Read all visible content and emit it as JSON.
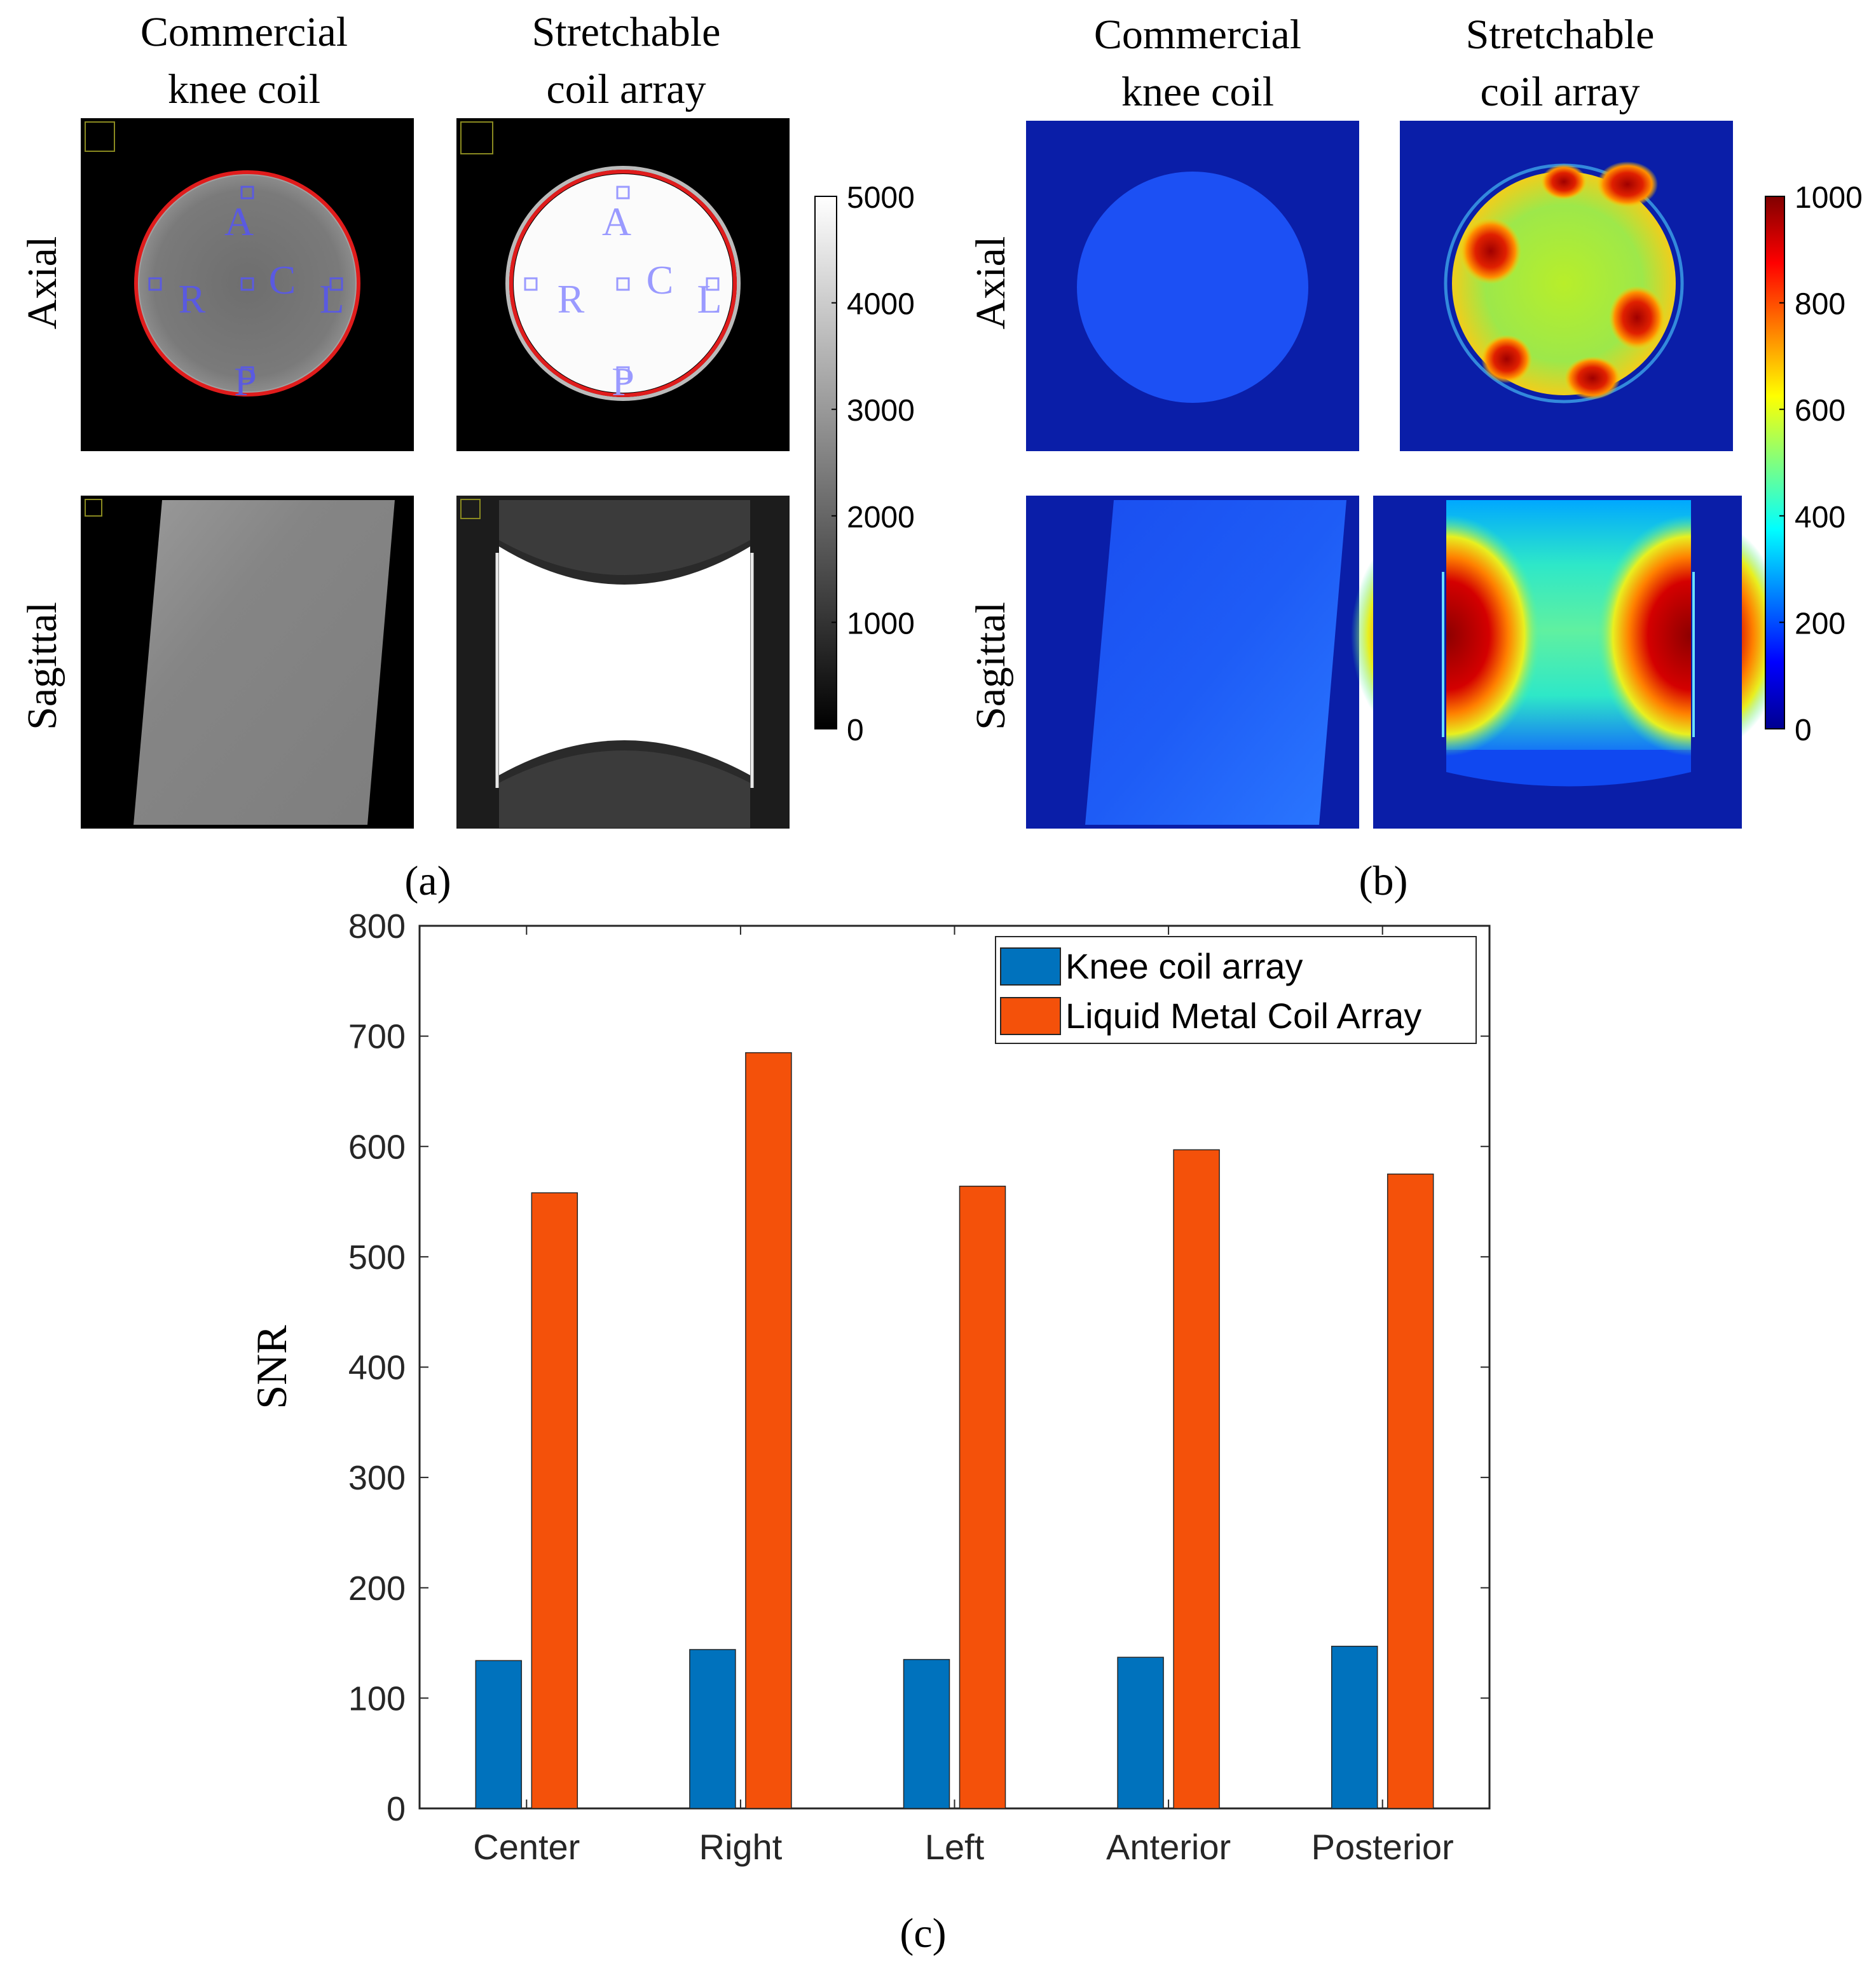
{
  "panel_a": {
    "caption": "(a)",
    "columns": [
      {
        "line1": "Commercial",
        "line2": "knee coil"
      },
      {
        "line1": "Stretchable",
        "line2": "coil array"
      }
    ],
    "rows": [
      "Axial",
      "Sagittal"
    ],
    "roi_labels": [
      "A",
      "R",
      "C",
      "L",
      "P"
    ],
    "colorbar": {
      "colormap": "gray",
      "ticks": [
        "5000",
        "4000",
        "3000",
        "2000",
        "1000",
        "0"
      ],
      "min": 0,
      "max": 5000
    },
    "colors": {
      "roi": "#5a5ae0",
      "roi_light": "#9a9aff",
      "ring": "#e01c1c",
      "corner_box": "#8a8a20"
    }
  },
  "panel_b": {
    "caption": "(b)",
    "columns": [
      {
        "line1": "Commercial",
        "line2": "knee coil"
      },
      {
        "line1": "Stretchable",
        "line2": "coil array"
      }
    ],
    "rows": [
      "Axial",
      "Sagittal"
    ],
    "colorbar": {
      "colormap": "jet",
      "ticks": [
        "1000",
        "800",
        "600",
        "400",
        "200",
        "0"
      ],
      "min": 0,
      "max": 1000
    }
  },
  "panel_c": {
    "caption": "(c)",
    "colors": {
      "series1": "#0072bd",
      "series2": "#f4510a",
      "axis": "#262626",
      "grid": "#dcdcdc"
    }
  },
  "chart_data": {
    "type": "bar",
    "title": "",
    "xlabel": "",
    "ylabel": "SNR",
    "categories": [
      "Center",
      "Right",
      "Left",
      "Anterior",
      "Posterior"
    ],
    "series": [
      {
        "name": "Knee coil array",
        "values": [
          134,
          144,
          135,
          137,
          147
        ]
      },
      {
        "name": "Liquid Metal Coil Array",
        "values": [
          558,
          685,
          564,
          597,
          575
        ]
      }
    ],
    "ylim": [
      0,
      800
    ],
    "yticks": [
      "0",
      "100",
      "200",
      "300",
      "400",
      "500",
      "600",
      "700",
      "800"
    ],
    "legend": "top-right",
    "grid": false
  }
}
